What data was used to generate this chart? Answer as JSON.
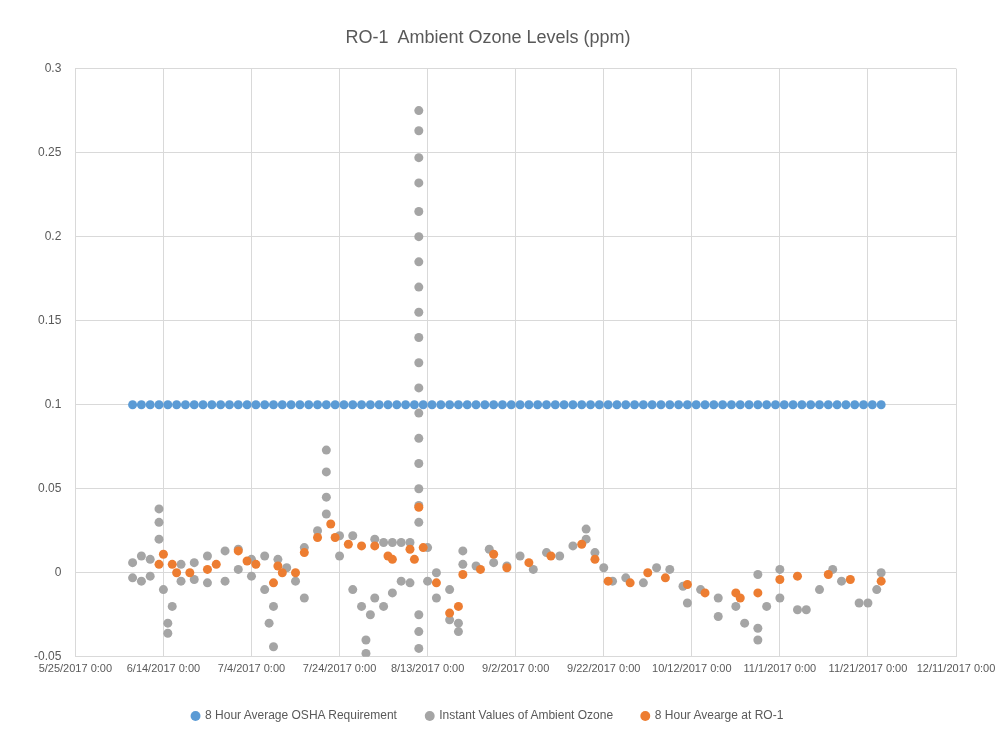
{
  "chart_data": {
    "type": "scatter",
    "title": "RO-1  Ambient Ozone Levels (ppm)",
    "xlim": [
      "2017-05-25",
      "2017-12-11"
    ],
    "xticks": [
      {
        "value": "2017-05-25",
        "label": "5/25/2017 0:00"
      },
      {
        "value": "2017-06-14",
        "label": "6/14/2017 0:00"
      },
      {
        "value": "2017-07-04",
        "label": "7/4/2017 0:00"
      },
      {
        "value": "2017-07-24",
        "label": "7/24/2017 0:00"
      },
      {
        "value": "2017-08-13",
        "label": "8/13/2017 0:00"
      },
      {
        "value": "2017-09-02",
        "label": "9/2/2017 0:00"
      },
      {
        "value": "2017-09-22",
        "label": "9/22/2017 0:00"
      },
      {
        "value": "2017-10-12",
        "label": "10/12/2017 0:00"
      },
      {
        "value": "2017-11-01",
        "label": "11/1/2017 0:00"
      },
      {
        "value": "2017-11-21",
        "label": "11/21/2017 0:00"
      },
      {
        "value": "2017-12-11",
        "label": "12/11/2017 0:00"
      }
    ],
    "ylim": [
      -0.05,
      0.3
    ],
    "yticks": [
      -0.05,
      0,
      0.05,
      0.1,
      0.15,
      0.2,
      0.25,
      0.3
    ],
    "grid": true,
    "legend": "bottom",
    "marker": "circle",
    "series": [
      {
        "name": "8 Hour Average OSHA Requirement",
        "color": "#5b9bd5",
        "x": [
          "2017-06-07",
          "2017-06-09",
          "2017-06-11",
          "2017-06-13",
          "2017-06-15",
          "2017-06-17",
          "2017-06-19",
          "2017-06-21",
          "2017-06-23",
          "2017-06-25",
          "2017-06-27",
          "2017-06-29",
          "2017-07-01",
          "2017-07-03",
          "2017-07-05",
          "2017-07-07",
          "2017-07-09",
          "2017-07-11",
          "2017-07-13",
          "2017-07-15",
          "2017-07-17",
          "2017-07-19",
          "2017-07-21",
          "2017-07-23",
          "2017-07-25",
          "2017-07-27",
          "2017-07-29",
          "2017-07-31",
          "2017-08-02",
          "2017-08-04",
          "2017-08-06",
          "2017-08-08",
          "2017-08-10",
          "2017-08-12",
          "2017-08-14",
          "2017-08-16",
          "2017-08-18",
          "2017-08-20",
          "2017-08-22",
          "2017-08-24",
          "2017-08-26",
          "2017-08-28",
          "2017-08-30",
          "2017-09-01",
          "2017-09-03",
          "2017-09-05",
          "2017-09-07",
          "2017-09-09",
          "2017-09-11",
          "2017-09-13",
          "2017-09-15",
          "2017-09-17",
          "2017-09-19",
          "2017-09-21",
          "2017-09-23",
          "2017-09-25",
          "2017-09-27",
          "2017-09-29",
          "2017-10-01",
          "2017-10-03",
          "2017-10-05",
          "2017-10-07",
          "2017-10-09",
          "2017-10-11",
          "2017-10-13",
          "2017-10-15",
          "2017-10-17",
          "2017-10-19",
          "2017-10-21",
          "2017-10-23",
          "2017-10-25",
          "2017-10-27",
          "2017-10-29",
          "2017-10-31",
          "2017-11-02",
          "2017-11-04",
          "2017-11-06",
          "2017-11-08",
          "2017-11-10",
          "2017-11-12",
          "2017-11-14",
          "2017-11-16",
          "2017-11-18",
          "2017-11-20",
          "2017-11-22",
          "2017-11-24"
        ],
        "values": [
          0.1,
          0.1,
          0.1,
          0.1,
          0.1,
          0.1,
          0.1,
          0.1,
          0.1,
          0.1,
          0.1,
          0.1,
          0.1,
          0.1,
          0.1,
          0.1,
          0.1,
          0.1,
          0.1,
          0.1,
          0.1,
          0.1,
          0.1,
          0.1,
          0.1,
          0.1,
          0.1,
          0.1,
          0.1,
          0.1,
          0.1,
          0.1,
          0.1,
          0.1,
          0.1,
          0.1,
          0.1,
          0.1,
          0.1,
          0.1,
          0.1,
          0.1,
          0.1,
          0.1,
          0.1,
          0.1,
          0.1,
          0.1,
          0.1,
          0.1,
          0.1,
          0.1,
          0.1,
          0.1,
          0.1,
          0.1,
          0.1,
          0.1,
          0.1,
          0.1,
          0.1,
          0.1,
          0.1,
          0.1,
          0.1,
          0.1,
          0.1,
          0.1,
          0.1,
          0.1,
          0.1,
          0.1,
          0.1,
          0.1,
          0.1,
          0.1,
          0.1,
          0.1,
          0.1,
          0.1,
          0.1,
          0.1,
          0.1,
          0.1,
          0.1,
          0.1
        ]
      },
      {
        "name": "Instant Values of Ambient Ozone",
        "color": "#a5a5a5",
        "x": [
          "2017-06-07",
          "2017-06-07",
          "2017-06-09",
          "2017-06-09",
          "2017-06-11",
          "2017-06-11",
          "2017-06-13",
          "2017-06-13",
          "2017-06-13",
          "2017-06-14",
          "2017-06-15",
          "2017-06-15",
          "2017-06-16",
          "2017-06-18",
          "2017-06-18",
          "2017-06-21",
          "2017-06-21",
          "2017-06-24",
          "2017-06-24",
          "2017-06-28",
          "2017-06-28",
          "2017-07-01",
          "2017-07-01",
          "2017-07-04",
          "2017-07-04",
          "2017-07-07",
          "2017-07-07",
          "2017-07-08",
          "2017-07-09",
          "2017-07-09",
          "2017-07-10",
          "2017-07-12",
          "2017-07-14",
          "2017-07-16",
          "2017-07-16",
          "2017-07-19",
          "2017-07-21",
          "2017-07-21",
          "2017-07-21",
          "2017-07-21",
          "2017-07-24",
          "2017-07-24",
          "2017-07-27",
          "2017-07-27",
          "2017-07-29",
          "2017-07-30",
          "2017-07-30",
          "2017-07-31",
          "2017-08-01",
          "2017-08-01",
          "2017-08-03",
          "2017-08-03",
          "2017-08-05",
          "2017-08-05",
          "2017-08-07",
          "2017-08-07",
          "2017-08-09",
          "2017-08-09",
          "2017-08-11",
          "2017-08-11",
          "2017-08-11",
          "2017-08-11",
          "2017-08-11",
          "2017-08-11",
          "2017-08-11",
          "2017-08-11",
          "2017-08-11",
          "2017-08-11",
          "2017-08-11",
          "2017-08-11",
          "2017-08-11",
          "2017-08-11",
          "2017-08-11",
          "2017-08-11",
          "2017-08-11",
          "2017-08-11",
          "2017-08-11",
          "2017-08-11",
          "2017-08-11",
          "2017-08-13",
          "2017-08-13",
          "2017-08-15",
          "2017-08-15",
          "2017-08-18",
          "2017-08-18",
          "2017-08-20",
          "2017-08-20",
          "2017-08-21",
          "2017-08-21",
          "2017-08-24",
          "2017-08-27",
          "2017-08-28",
          "2017-08-31",
          "2017-09-03",
          "2017-09-06",
          "2017-09-09",
          "2017-09-12",
          "2017-09-15",
          "2017-09-18",
          "2017-09-18",
          "2017-09-20",
          "2017-09-22",
          "2017-09-24",
          "2017-09-27",
          "2017-10-01",
          "2017-10-04",
          "2017-10-07",
          "2017-10-10",
          "2017-10-11",
          "2017-10-14",
          "2017-10-18",
          "2017-10-18",
          "2017-10-22",
          "2017-10-24",
          "2017-10-27",
          "2017-10-27",
          "2017-10-27",
          "2017-10-29",
          "2017-11-01",
          "2017-11-01",
          "2017-11-05",
          "2017-11-07",
          "2017-11-10",
          "2017-11-13",
          "2017-11-15",
          "2017-11-19",
          "2017-11-21",
          "2017-11-23",
          "2017-11-24"
        ],
        "values": [
          0.006,
          -0.003,
          0.01,
          -0.005,
          0.008,
          -0.002,
          0.038,
          0.03,
          0.02,
          -0.01,
          -0.03,
          -0.036,
          -0.02,
          0.005,
          -0.005,
          0.006,
          -0.004,
          0.01,
          -0.006,
          0.013,
          -0.005,
          0.014,
          0.002,
          0.008,
          -0.002,
          0.01,
          -0.01,
          -0.03,
          -0.044,
          -0.02,
          0.008,
          0.003,
          -0.005,
          -0.015,
          0.015,
          0.025,
          0.073,
          0.06,
          0.045,
          0.035,
          0.022,
          0.01,
          0.022,
          -0.01,
          -0.02,
          -0.048,
          -0.04,
          -0.025,
          0.02,
          -0.015,
          0.018,
          -0.02,
          0.018,
          -0.012,
          0.018,
          -0.005,
          0.018,
          -0.006,
          0.275,
          0.263,
          0.247,
          0.232,
          0.215,
          0.2,
          0.185,
          0.17,
          0.155,
          0.14,
          0.125,
          0.11,
          0.095,
          0.08,
          0.065,
          0.05,
          0.04,
          0.03,
          -0.025,
          -0.035,
          -0.045,
          0.015,
          -0.005,
          0,
          -0.015,
          -0.01,
          -0.028,
          -0.035,
          -0.03,
          0.013,
          0.005,
          0.004,
          0.014,
          0.006,
          0.004,
          0.01,
          0.002,
          0.012,
          0.01,
          0.016,
          0.026,
          0.02,
          0.012,
          0.003,
          -0.005,
          -0.003,
          -0.006,
          0.003,
          0.002,
          -0.008,
          -0.018,
          -0.01,
          -0.015,
          -0.026,
          -0.02,
          -0.03,
          -0.001,
          -0.04,
          -0.033,
          -0.02,
          0.002,
          -0.015,
          -0.022,
          -0.022,
          -0.01,
          0.002,
          -0.005,
          -0.018,
          -0.018,
          -0.01,
          0
        ]
      },
      {
        "name": "8 Hour Avearge at RO-1",
        "color": "#ed7d31",
        "x": [
          "2017-06-13",
          "2017-06-14",
          "2017-06-16",
          "2017-06-17",
          "2017-06-20",
          "2017-06-24",
          "2017-06-26",
          "2017-07-01",
          "2017-07-03",
          "2017-07-05",
          "2017-07-09",
          "2017-07-10",
          "2017-07-11",
          "2017-07-14",
          "2017-07-16",
          "2017-07-19",
          "2017-07-22",
          "2017-07-23",
          "2017-07-26",
          "2017-07-29",
          "2017-08-01",
          "2017-08-04",
          "2017-08-05",
          "2017-08-09",
          "2017-08-10",
          "2017-08-11",
          "2017-08-12",
          "2017-08-15",
          "2017-08-18",
          "2017-08-20",
          "2017-08-21",
          "2017-08-25",
          "2017-08-28",
          "2017-08-31",
          "2017-09-05",
          "2017-09-10",
          "2017-09-17",
          "2017-09-20",
          "2017-09-23",
          "2017-09-28",
          "2017-10-02",
          "2017-10-06",
          "2017-10-11",
          "2017-10-15",
          "2017-10-22",
          "2017-10-23",
          "2017-10-27",
          "2017-11-01",
          "2017-11-05",
          "2017-11-12",
          "2017-11-17",
          "2017-11-24"
        ],
        "values": [
          0.005,
          0.011,
          0.005,
          0,
          0,
          0.002,
          0.005,
          0.013,
          0.007,
          0.005,
          -0.006,
          0.004,
          0,
          0,
          0.012,
          0.021,
          0.029,
          0.021,
          0.017,
          0.016,
          0.016,
          0.01,
          0.008,
          0.014,
          0.008,
          0.039,
          0.015,
          -0.006,
          -0.024,
          -0.02,
          -0.001,
          0.002,
          0.011,
          0.003,
          0.006,
          0.01,
          0.017,
          0.008,
          -0.005,
          -0.006,
          0,
          -0.003,
          -0.007,
          -0.012,
          -0.012,
          -0.015,
          -0.012,
          -0.004,
          -0.002,
          -0.001,
          -0.004,
          -0.005
        ]
      }
    ]
  }
}
